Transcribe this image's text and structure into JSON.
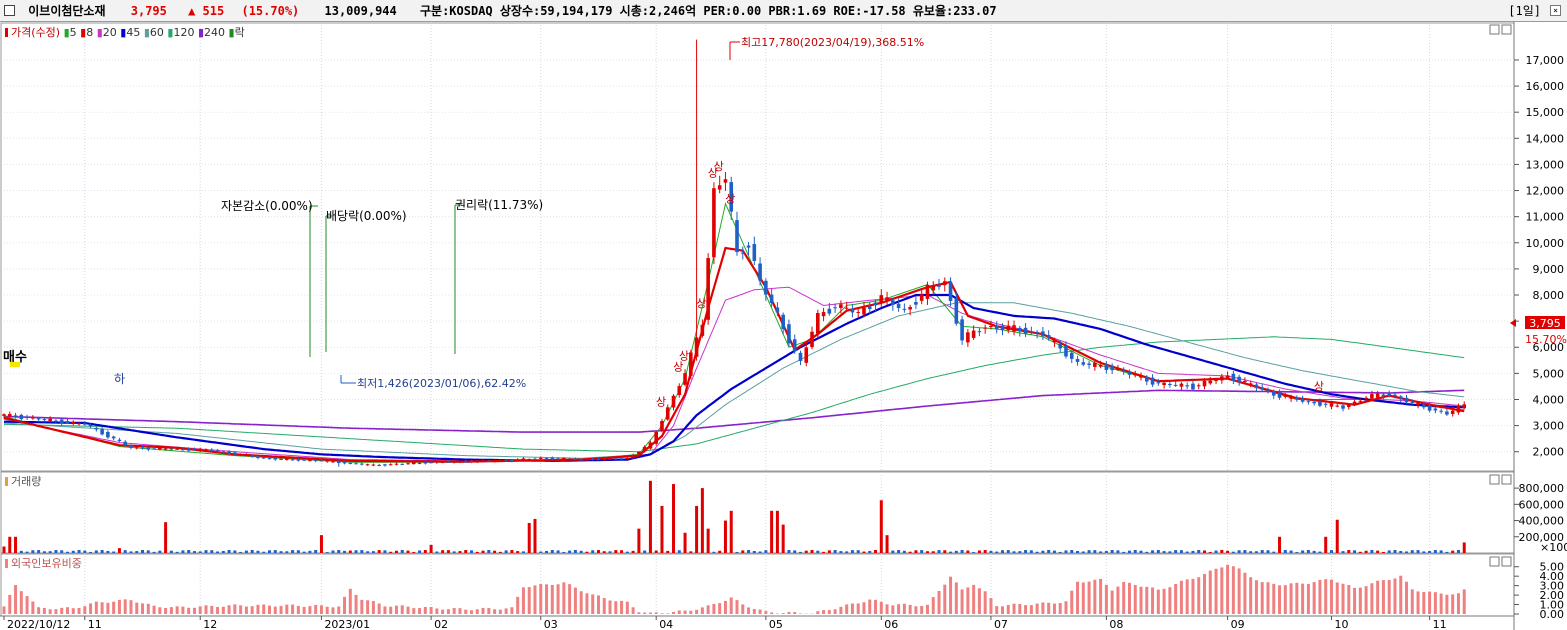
{
  "header": {
    "name": "이브이첨단소재",
    "price": "3,795",
    "change": "▲ 515",
    "change_pct": "(15.70%)",
    "volume": "13,009,944",
    "info": "구분:KOSDAQ 상장수:59,194,179 시총:2,246억 PER:0.00 PBR:1.69 ROE:-17.58 유보율:233.07",
    "period": "[1일]"
  },
  "colors": {
    "up": "#e00000",
    "down": "#1f5fc8",
    "ma5": "#22aa22",
    "ma8": "#e00000",
    "ma20": "#cc33cc",
    "ma45": "#0000cc",
    "ma60": "#5aa0a0",
    "ma120": "#22aa66",
    "ma240": "#8822cc",
    "foreign": "#f08080"
  },
  "price_panel": {
    "legend": [
      {
        "label": "가격(수정)",
        "color": "#e00000"
      },
      {
        "label": "5",
        "color": "#22aa22"
      },
      {
        "label": "8",
        "color": "#e00000"
      },
      {
        "label": "20",
        "color": "#cc33cc"
      },
      {
        "label": "45",
        "color": "#0000cc"
      },
      {
        "label": "60",
        "color": "#5aa0a0"
      },
      {
        "label": "120",
        "color": "#22aa66"
      },
      {
        "label": "240",
        "color": "#8822cc"
      },
      {
        "label": "락",
        "color": "#228822"
      }
    ],
    "annotations": {
      "high": "최고17,780(2023/04/19),368.51%",
      "low": "최저1,426(2023/01/06),62.42%",
      "capital_reduction": "자본감소(0.00%)",
      "ex_dividend": "배당락(0.00%)",
      "ex_rights": "권리락(11.73%)",
      "buy": "매수",
      "limit_up": "상",
      "limit_down": "하",
      "last_price": "3,795",
      "last_pct": "15.70%"
    }
  },
  "volume_panel": {
    "title": "거래량",
    "unit": "×100"
  },
  "foreign_panel": {
    "title": "외국인보유비중"
  },
  "chart_data": [
    {
      "type": "candlestick",
      "title": "이브이첨단소재",
      "y_ticks": [
        "2,000",
        "3,000",
        "4,000",
        "5,000",
        "6,000",
        "7,000",
        "8,000",
        "9,000",
        "10,000",
        "11,000",
        "12,000",
        "13,000",
        "14,000",
        "15,000",
        "16,000",
        "17,000"
      ],
      "ylim": [
        1300,
        18300
      ],
      "x_ticks": [
        {
          "label": "2022/10/12",
          "x": 0
        },
        {
          "label": "11",
          "x": 14
        },
        {
          "label": "12",
          "x": 34
        },
        {
          "label": "2023/01",
          "x": 55
        },
        {
          "label": "02",
          "x": 74
        },
        {
          "label": "03",
          "x": 93
        },
        {
          "label": "04",
          "x": 113
        },
        {
          "label": "05",
          "x": 132
        },
        {
          "label": "06",
          "x": 152
        },
        {
          "label": "07",
          "x": 171
        },
        {
          "label": "08",
          "x": 191
        },
        {
          "label": "09",
          "x": 212
        },
        {
          "label": "10",
          "x": 230
        },
        {
          "label": "11",
          "x": 247
        }
      ],
      "xlim": [
        0,
        254
      ],
      "close_path": [
        [
          0,
          3400
        ],
        [
          14,
          3050
        ],
        [
          22,
          2150
        ],
        [
          30,
          2100
        ],
        [
          36,
          2050
        ],
        [
          45,
          1750
        ],
        [
          55,
          1650
        ],
        [
          64,
          1480
        ],
        [
          74,
          1600
        ],
        [
          86,
          1650
        ],
        [
          93,
          1750
        ],
        [
          100,
          1700
        ],
        [
          108,
          1750
        ],
        [
          112,
          2300
        ],
        [
          115,
          3700
        ],
        [
          118,
          5000
        ],
        [
          121,
          7000
        ],
        [
          123,
          12000
        ],
        [
          125,
          12500
        ],
        [
          127,
          9500
        ],
        [
          129,
          10000
        ],
        [
          131,
          8500
        ],
        [
          134,
          7200
        ],
        [
          138,
          5400
        ],
        [
          141,
          7200
        ],
        [
          144,
          7600
        ],
        [
          148,
          7300
        ],
        [
          152,
          7900
        ],
        [
          156,
          7400
        ],
        [
          160,
          8200
        ],
        [
          163,
          8500
        ],
        [
          166,
          6300
        ],
        [
          170,
          6800
        ],
        [
          175,
          6700
        ],
        [
          180,
          6500
        ],
        [
          186,
          5400
        ],
        [
          192,
          5200
        ],
        [
          200,
          4600
        ],
        [
          206,
          4500
        ],
        [
          212,
          4900
        ],
        [
          220,
          4200
        ],
        [
          226,
          3900
        ],
        [
          232,
          3700
        ],
        [
          236,
          4100
        ],
        [
          240,
          4200
        ],
        [
          244,
          3850
        ],
        [
          250,
          3450
        ],
        [
          253,
          3795
        ]
      ],
      "ma5": [
        [
          0,
          3350
        ],
        [
          20,
          2200
        ],
        [
          40,
          1850
        ],
        [
          60,
          1600
        ],
        [
          80,
          1600
        ],
        [
          100,
          1700
        ],
        [
          110,
          1900
        ],
        [
          114,
          3000
        ],
        [
          118,
          4800
        ],
        [
          122,
          8500
        ],
        [
          125,
          11500
        ],
        [
          128,
          10000
        ],
        [
          132,
          8000
        ],
        [
          136,
          6000
        ],
        [
          140,
          6300
        ],
        [
          146,
          7600
        ],
        [
          152,
          7800
        ],
        [
          160,
          8400
        ],
        [
          166,
          6800
        ],
        [
          172,
          6700
        ],
        [
          180,
          6400
        ],
        [
          190,
          5300
        ],
        [
          200,
          4700
        ],
        [
          212,
          4800
        ],
        [
          224,
          4000
        ],
        [
          236,
          4000
        ],
        [
          244,
          3800
        ],
        [
          253,
          3600
        ]
      ],
      "ma8": [
        [
          0,
          3300
        ],
        [
          20,
          2250
        ],
        [
          30,
          2150
        ],
        [
          40,
          1900
        ],
        [
          60,
          1650
        ],
        [
          80,
          1620
        ],
        [
          100,
          1700
        ],
        [
          110,
          1850
        ],
        [
          114,
          2600
        ],
        [
          118,
          4200
        ],
        [
          122,
          7500
        ],
        [
          125,
          9800
        ],
        [
          128,
          9700
        ],
        [
          132,
          8300
        ],
        [
          137,
          5900
        ],
        [
          141,
          6500
        ],
        [
          146,
          7400
        ],
        [
          152,
          7700
        ],
        [
          160,
          8300
        ],
        [
          164,
          8500
        ],
        [
          167,
          7200
        ],
        [
          172,
          6800
        ],
        [
          180,
          6500
        ],
        [
          190,
          5400
        ],
        [
          200,
          4700
        ],
        [
          212,
          4800
        ],
        [
          224,
          4050
        ],
        [
          234,
          3800
        ],
        [
          240,
          4150
        ],
        [
          246,
          3850
        ],
        [
          253,
          3550
        ]
      ],
      "ma20": [
        [
          0,
          3250
        ],
        [
          20,
          2350
        ],
        [
          40,
          2000
        ],
        [
          60,
          1700
        ],
        [
          80,
          1650
        ],
        [
          100,
          1700
        ],
        [
          112,
          1900
        ],
        [
          116,
          3000
        ],
        [
          120,
          5200
        ],
        [
          125,
          7800
        ],
        [
          130,
          8200
        ],
        [
          136,
          8300
        ],
        [
          142,
          7600
        ],
        [
          150,
          7800
        ],
        [
          160,
          8000
        ],
        [
          166,
          7300
        ],
        [
          172,
          6900
        ],
        [
          180,
          6500
        ],
        [
          190,
          5700
        ],
        [
          200,
          5000
        ],
        [
          212,
          4900
        ],
        [
          222,
          4400
        ],
        [
          232,
          4050
        ],
        [
          244,
          3950
        ],
        [
          253,
          3750
        ]
      ],
      "ma45": [
        [
          0,
          3150
        ],
        [
          14,
          3100
        ],
        [
          30,
          2550
        ],
        [
          45,
          2100
        ],
        [
          55,
          1900
        ],
        [
          65,
          1800
        ],
        [
          80,
          1700
        ],
        [
          95,
          1650
        ],
        [
          108,
          1700
        ],
        [
          112,
          1900
        ],
        [
          116,
          2400
        ],
        [
          120,
          3400
        ],
        [
          126,
          4400
        ],
        [
          132,
          5200
        ],
        [
          138,
          6000
        ],
        [
          146,
          6900
        ],
        [
          152,
          7500
        ],
        [
          158,
          8000
        ],
        [
          164,
          8000
        ],
        [
          168,
          7500
        ],
        [
          175,
          7200
        ],
        [
          182,
          7100
        ],
        [
          190,
          6700
        ],
        [
          198,
          6100
        ],
        [
          206,
          5600
        ],
        [
          214,
          5100
        ],
        [
          222,
          4600
        ],
        [
          230,
          4200
        ],
        [
          236,
          4000
        ],
        [
          244,
          3800
        ],
        [
          253,
          3700
        ]
      ],
      "ma60": [
        [
          0,
          3100
        ],
        [
          30,
          2700
        ],
        [
          55,
          2100
        ],
        [
          80,
          1850
        ],
        [
          100,
          1750
        ],
        [
          112,
          1900
        ],
        [
          118,
          2600
        ],
        [
          125,
          3800
        ],
        [
          135,
          5200
        ],
        [
          145,
          6300
        ],
        [
          155,
          7200
        ],
        [
          165,
          7700
        ],
        [
          175,
          7700
        ],
        [
          185,
          7300
        ],
        [
          195,
          6800
        ],
        [
          205,
          6200
        ],
        [
          215,
          5600
        ],
        [
          225,
          5100
        ],
        [
          235,
          4700
        ],
        [
          245,
          4300
        ],
        [
          253,
          4100
        ]
      ],
      "ma120": [
        [
          0,
          3050
        ],
        [
          30,
          2900
        ],
        [
          60,
          2500
        ],
        [
          90,
          2100
        ],
        [
          110,
          2000
        ],
        [
          120,
          2300
        ],
        [
          130,
          2900
        ],
        [
          140,
          3500
        ],
        [
          150,
          4200
        ],
        [
          160,
          4800
        ],
        [
          170,
          5300
        ],
        [
          180,
          5700
        ],
        [
          190,
          6000
        ],
        [
          200,
          6200
        ],
        [
          210,
          6300
        ],
        [
          220,
          6400
        ],
        [
          230,
          6300
        ],
        [
          240,
          6000
        ],
        [
          253,
          5600
        ]
      ],
      "ma240": [
        [
          0,
          3350
        ],
        [
          30,
          3150
        ],
        [
          60,
          2900
        ],
        [
          90,
          2750
        ],
        [
          110,
          2750
        ],
        [
          120,
          2900
        ],
        [
          140,
          3300
        ],
        [
          160,
          3750
        ],
        [
          180,
          4150
        ],
        [
          200,
          4350
        ],
        [
          220,
          4300
        ],
        [
          240,
          4250
        ],
        [
          253,
          4350
        ]
      ],
      "high": {
        "x": 120,
        "y": 17780
      },
      "low": {
        "x": 58,
        "y": 1426
      }
    },
    {
      "type": "bar",
      "title": "거래량",
      "y_ticks": [
        "200,000",
        "400,000",
        "600,000",
        "800,000"
      ],
      "ylim": [
        0,
        900000
      ],
      "xlim": [
        0,
        254
      ],
      "peaks": [
        [
          0,
          80000
        ],
        [
          1,
          200000
        ],
        [
          2,
          200000
        ],
        [
          20,
          60000
        ],
        [
          28,
          380000
        ],
        [
          55,
          220000
        ],
        [
          60,
          30000
        ],
        [
          74,
          100000
        ],
        [
          91,
          370000
        ],
        [
          92,
          420000
        ],
        [
          110,
          300000
        ],
        [
          112,
          890000
        ],
        [
          114,
          580000
        ],
        [
          116,
          850000
        ],
        [
          118,
          250000
        ],
        [
          120,
          580000
        ],
        [
          121,
          800000
        ],
        [
          122,
          300000
        ],
        [
          125,
          400000
        ],
        [
          126,
          520000
        ],
        [
          133,
          520000
        ],
        [
          134,
          520000
        ],
        [
          135,
          350000
        ],
        [
          152,
          650000
        ],
        [
          153,
          220000
        ],
        [
          221,
          200000
        ],
        [
          229,
          200000
        ],
        [
          231,
          410000
        ],
        [
          253,
          130000
        ]
      ],
      "base": 22000
    },
    {
      "type": "bar",
      "title": "외국인보유비중",
      "y_ticks": [
        "0.00",
        "1.00",
        "2.00",
        "3.00",
        "4.00",
        "5.00"
      ],
      "ylim": [
        0,
        5.5
      ],
      "xlim": [
        0,
        254
      ],
      "profile": [
        [
          0,
          0.8
        ],
        [
          2,
          3.0
        ],
        [
          4,
          2.0
        ],
        [
          6,
          0.6
        ],
        [
          12,
          0.6
        ],
        [
          16,
          1.2
        ],
        [
          22,
          1.5
        ],
        [
          26,
          0.8
        ],
        [
          30,
          0.7
        ],
        [
          40,
          0.9
        ],
        [
          50,
          0.9
        ],
        [
          58,
          0.8
        ],
        [
          60,
          2.6
        ],
        [
          62,
          1.6
        ],
        [
          66,
          0.9
        ],
        [
          75,
          0.6
        ],
        [
          80,
          0.5
        ],
        [
          88,
          0.6
        ],
        [
          90,
          2.9
        ],
        [
          94,
          3.1
        ],
        [
          97,
          3.3
        ],
        [
          102,
          2.0
        ],
        [
          106,
          1.4
        ],
        [
          108,
          1.2
        ],
        [
          110,
          0.3
        ],
        [
          112,
          0.05
        ],
        [
          118,
          0.3
        ],
        [
          122,
          0.8
        ],
        [
          126,
          1.7
        ],
        [
          128,
          1.0
        ],
        [
          132,
          0.2
        ],
        [
          140,
          0.05
        ],
        [
          146,
          0.9
        ],
        [
          150,
          1.5
        ],
        [
          154,
          1.0
        ],
        [
          160,
          0.9
        ],
        [
          164,
          4.0
        ],
        [
          166,
          2.5
        ],
        [
          168,
          3.2
        ],
        [
          170,
          2.3
        ],
        [
          172,
          0.9
        ],
        [
          180,
          1.1
        ],
        [
          184,
          1.3
        ],
        [
          186,
          3.4
        ],
        [
          190,
          3.6
        ],
        [
          192,
          2.6
        ],
        [
          194,
          3.3
        ],
        [
          198,
          2.9
        ],
        [
          200,
          2.5
        ],
        [
          204,
          3.4
        ],
        [
          208,
          4.2
        ],
        [
          212,
          5.3
        ],
        [
          214,
          4.7
        ],
        [
          218,
          3.3
        ],
        [
          222,
          3.1
        ],
        [
          226,
          3.3
        ],
        [
          230,
          3.7
        ],
        [
          234,
          2.7
        ],
        [
          238,
          3.4
        ],
        [
          242,
          4.0
        ],
        [
          244,
          2.6
        ],
        [
          248,
          2.2
        ],
        [
          252,
          2.1
        ],
        [
          253,
          2.5
        ]
      ]
    }
  ]
}
